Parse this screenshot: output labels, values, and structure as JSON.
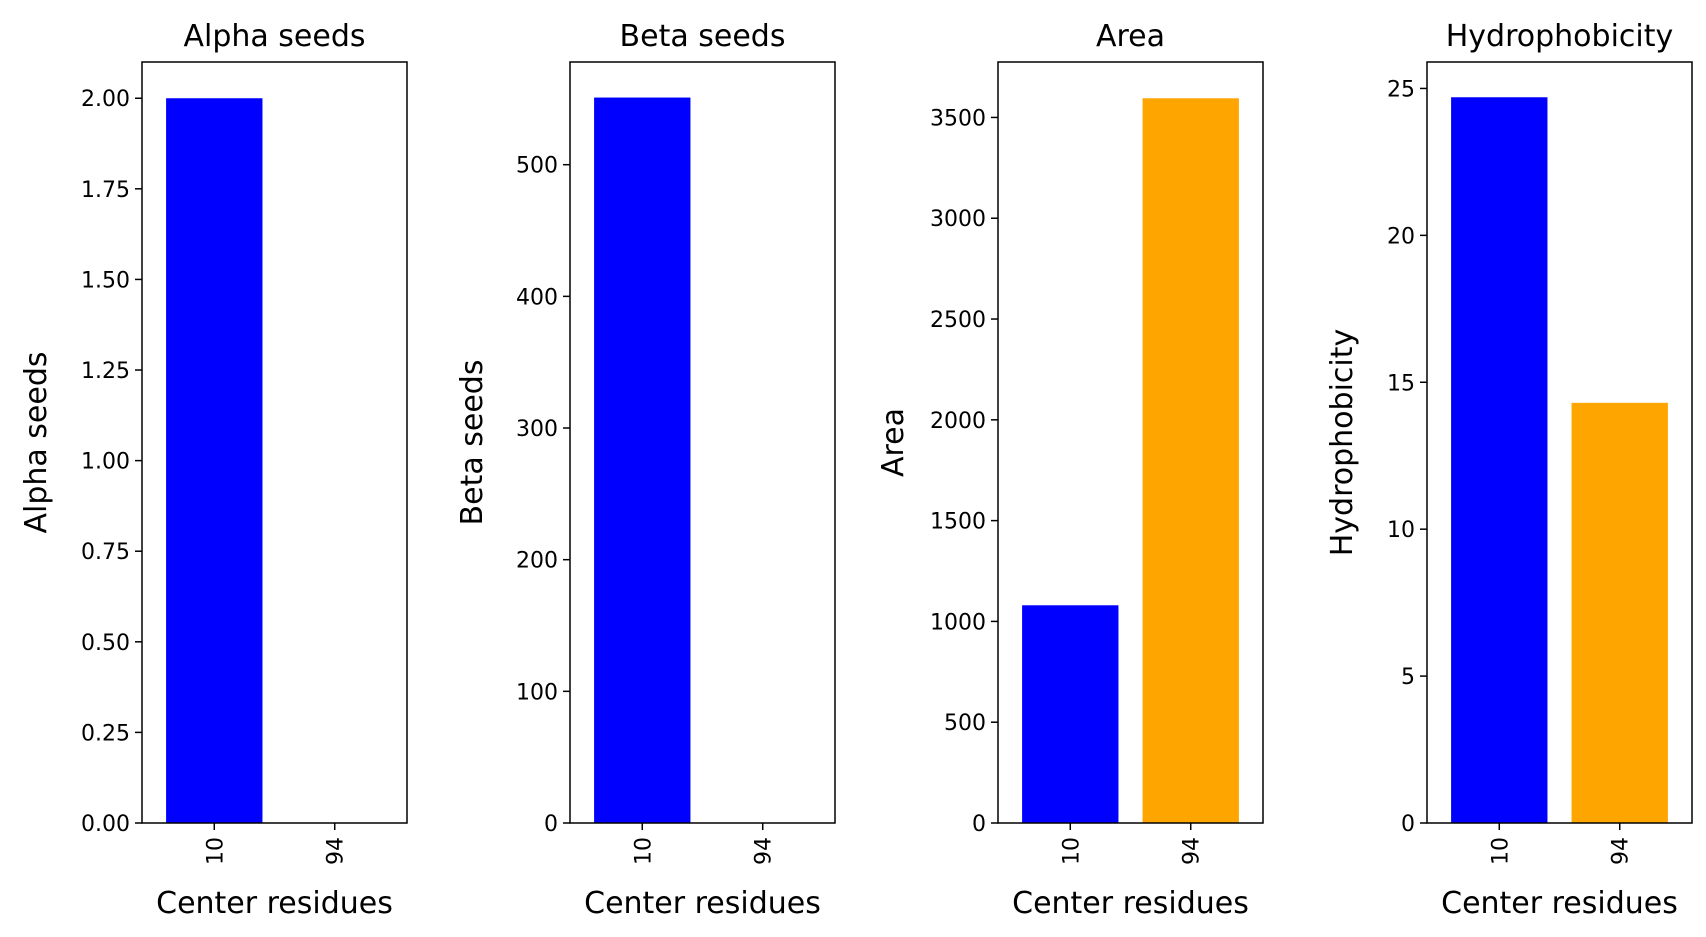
{
  "chart_data": [
    {
      "type": "bar",
      "title": "Alpha seeds",
      "xlabel": "Center residues",
      "ylabel": "Alpha seeds",
      "categories": [
        "10",
        "94"
      ],
      "values": [
        2.0,
        0
      ],
      "colors": [
        "#0000ff",
        "#ffa500"
      ],
      "ylim": [
        0,
        2.1
      ],
      "yticks": [
        0.0,
        0.25,
        0.5,
        0.75,
        1.0,
        1.25,
        1.5,
        1.75,
        2.0
      ],
      "ytick_labels": [
        "0.00",
        "0.25",
        "0.50",
        "0.75",
        "1.00",
        "1.25",
        "1.50",
        "1.75",
        "2.00"
      ],
      "grid": false
    },
    {
      "type": "bar",
      "title": "Beta seeds",
      "xlabel": "Center residues",
      "ylabel": "Beta seeds",
      "categories": [
        "10",
        "94"
      ],
      "values": [
        551,
        0
      ],
      "colors": [
        "#0000ff",
        "#ffa500"
      ],
      "ylim": [
        0,
        578
      ],
      "yticks": [
        0,
        100,
        200,
        300,
        400,
        500
      ],
      "ytick_labels": [
        "0",
        "100",
        "200",
        "300",
        "400",
        "500"
      ],
      "grid": false
    },
    {
      "type": "bar",
      "title": "Area",
      "xlabel": "Center residues",
      "ylabel": "Area",
      "categories": [
        "10",
        "94"
      ],
      "values": [
        1080,
        3595
      ],
      "colors": [
        "#0000ff",
        "#ffa500"
      ],
      "ylim": [
        0,
        3775
      ],
      "yticks": [
        0,
        500,
        1000,
        1500,
        2000,
        2500,
        3000,
        3500
      ],
      "ytick_labels": [
        "0",
        "500",
        "1000",
        "1500",
        "2000",
        "2500",
        "3000",
        "3500"
      ],
      "grid": false
    },
    {
      "type": "bar",
      "title": "Hydrophobicity",
      "xlabel": "Center residues",
      "ylabel": "Hydrophobicity",
      "categories": [
        "10",
        "94"
      ],
      "values": [
        24.7,
        14.3
      ],
      "colors": [
        "#0000ff",
        "#ffa500"
      ],
      "ylim": [
        0,
        25.9
      ],
      "yticks": [
        0,
        5,
        10,
        15,
        20,
        25
      ],
      "ytick_labels": [
        "0",
        "5",
        "10",
        "15",
        "20",
        "25"
      ],
      "grid": false
    }
  ]
}
